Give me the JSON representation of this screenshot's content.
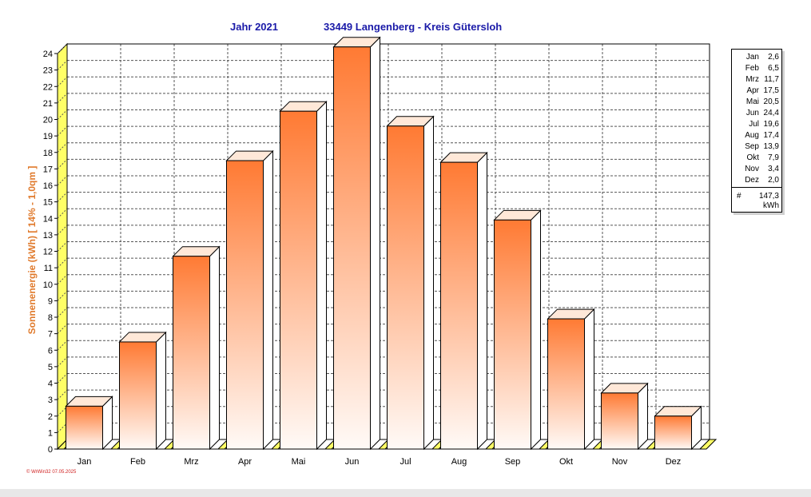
{
  "title_left": "Jahr  2021",
  "title_right": "33449 Langenberg - Kreis Gütersloh",
  "colors": {
    "bar_top": "#ff7a33",
    "bar_bottom": "#fffaf7",
    "floor": "#ffff66",
    "title": "#1a1aa8",
    "ylabel": "#e07a2c",
    "footer": "#d02020"
  },
  "chart_data": {
    "type": "bar",
    "categories": [
      "Jan",
      "Feb",
      "Mrz",
      "Apr",
      "Mai",
      "Jun",
      "Jul",
      "Aug",
      "Sep",
      "Okt",
      "Nov",
      "Dez"
    ],
    "values": [
      2.6,
      6.5,
      11.7,
      17.5,
      20.5,
      24.4,
      19.6,
      17.4,
      13.9,
      7.9,
      3.4,
      2.0
    ],
    "ylabel": "Sonnenenergie  (kWh)    [ 14% - 1,0qm ]",
    "ylim": [
      0,
      24
    ],
    "yticks": [
      0,
      1,
      2,
      3,
      4,
      5,
      6,
      7,
      8,
      9,
      10,
      11,
      12,
      13,
      14,
      15,
      16,
      17,
      18,
      19,
      20,
      21,
      22,
      23,
      24
    ],
    "grid": true,
    "legend_position": "right"
  },
  "legend": {
    "months": [
      "Jan",
      "Feb",
      "Mrz",
      "Apr",
      "Mai",
      "Jun",
      "Jul",
      "Aug",
      "Sep",
      "Okt",
      "Nov",
      "Dez"
    ],
    "values": [
      "2,6",
      "6,5",
      "11,7",
      "17,5",
      "20,5",
      "24,4",
      "19,6",
      "17,4",
      "13,9",
      "7,9",
      "3,4",
      "2,0"
    ],
    "total_symbol": "#",
    "total": "147,3",
    "unit": "kWh"
  },
  "footer": "© WrWin32  07.05.2025"
}
